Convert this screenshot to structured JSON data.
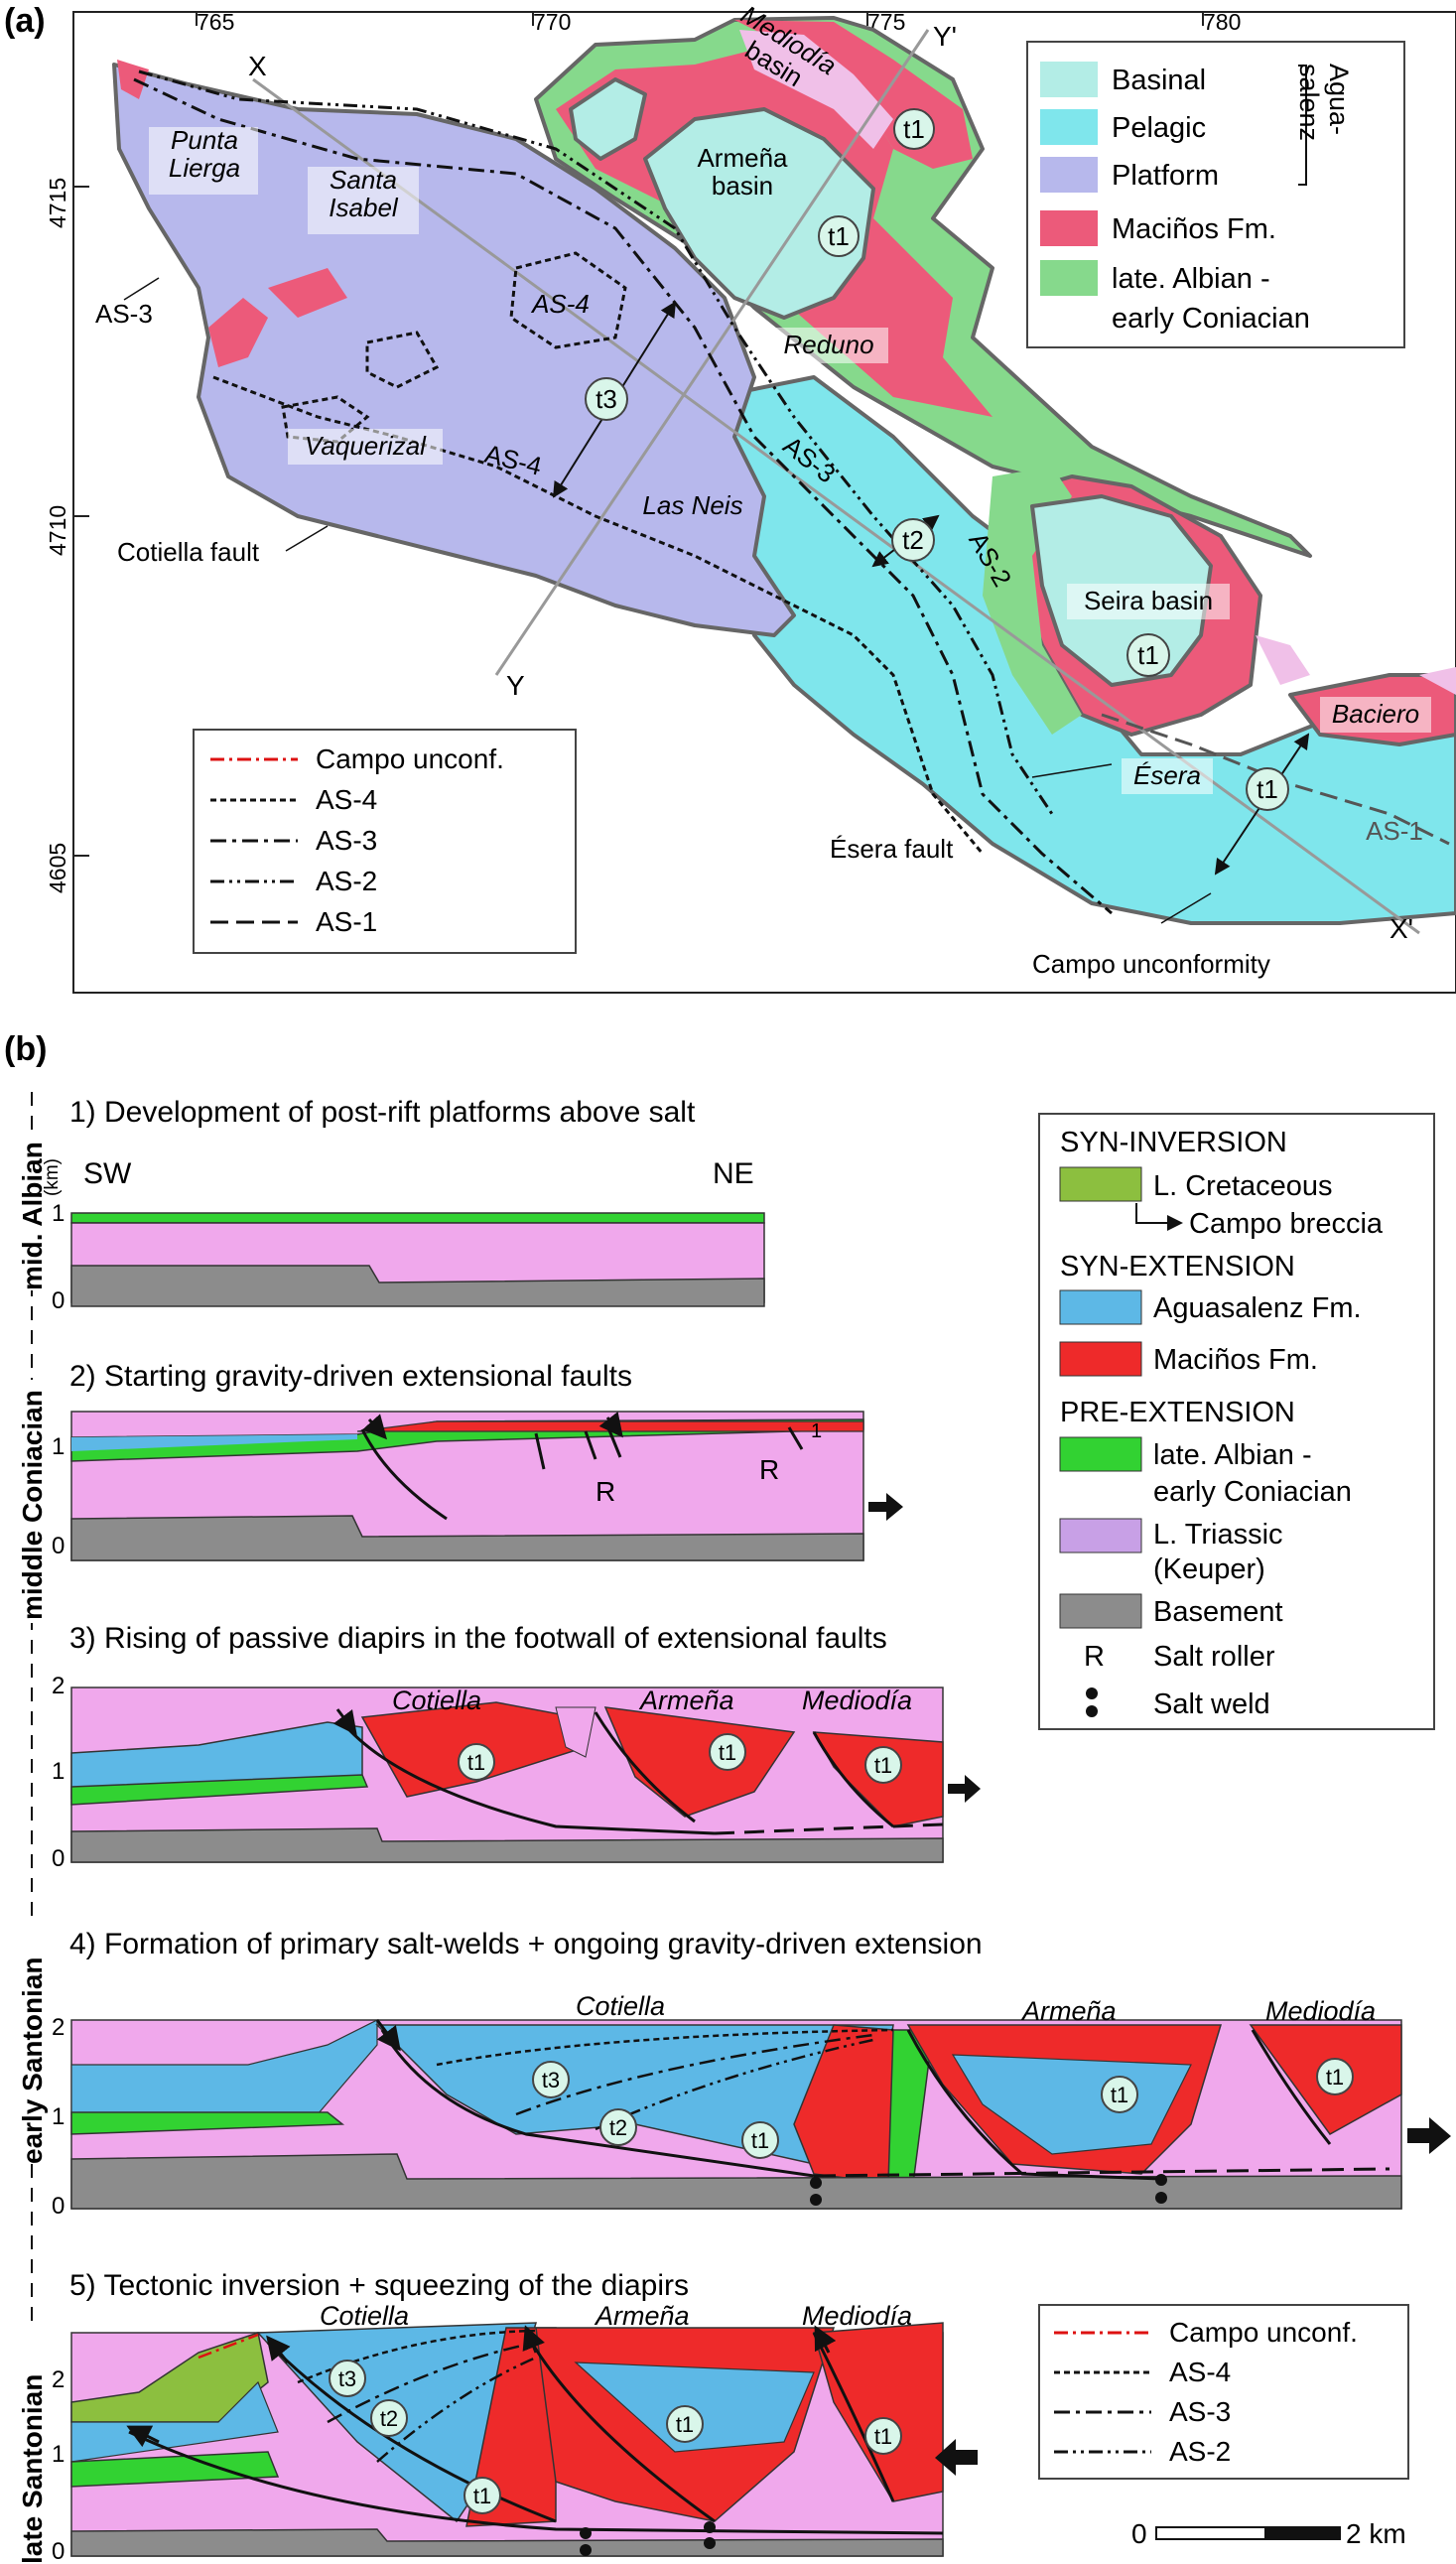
{
  "panel_a": {
    "letter": "(a)",
    "easting_ticks": [
      "765",
      "770",
      "775",
      "780"
    ],
    "northing_ticks": [
      "4715",
      "4710",
      "4605"
    ],
    "legend": {
      "basinal": "Basinal",
      "pelagic": "Pelagic",
      "platform": "Platform",
      "aguasalenz": "Agua-\nsalenz",
      "macinos": "Maciños Fm.",
      "late_albian_1": "late. Albian -",
      "late_albian_2": "early Coniacian"
    },
    "line_legend": {
      "campo": "Campo unconf.",
      "as4": "AS-4",
      "as3": "AS-3",
      "as2": "AS-2",
      "as1": "AS-1"
    },
    "labels": {
      "x": "X",
      "x_prime": "X'",
      "y": "Y",
      "y_prime": "Y'",
      "punta_lierga": "Punta\nLierga",
      "santa_isabel": "Santa\nIsabel",
      "mediodia_basin": "Mediodía\nbasin",
      "armena_basin": "Armeña\nbasin",
      "reduno": "Reduno",
      "las_neis": "Las Neis",
      "vaquerizal": "Vaquerizal",
      "seira_basin": "Seira basin",
      "baciero": "Baciero",
      "esera": "Ésera",
      "as3_a": "AS-3",
      "as4_a": "AS-4",
      "as4_b": "AS-4",
      "as3_b": "AS-3",
      "as2_a": "AS-2",
      "as1_a": "AS-1",
      "cotiella_fault": "Cotiella fault",
      "esera_fault": "Ésera fault",
      "campo_unconformity": "Campo unconformity",
      "t1": "t1",
      "t2": "t2",
      "t3": "t3"
    },
    "colors": {
      "basinal": "#b3ede6",
      "pelagic": "#7fe6ec",
      "platform": "#b7b8ec",
      "macinos": "#ec5a7a",
      "albian": "#86d98c",
      "keuper_light": "#f0c0e8"
    }
  },
  "panel_b": {
    "letter": "(b)",
    "stages": [
      {
        "title": "1) Development of post-rift platforms above salt",
        "age": "mid. Albian"
      },
      {
        "title": "2) Starting gravity-driven extensional faults",
        "age": "middle Coniacian"
      },
      {
        "title": "3) Rising of passive diapirs in the footwall of extensional faults",
        "age": ""
      },
      {
        "title": "4) Formation of primary salt-welds + ongoing gravity-driven extension",
        "age": "early Santonian"
      },
      {
        "title": "5) Tectonic inversion + squeezing of the diapirs",
        "age": "late Santonian"
      }
    ],
    "km_unit": "(km)",
    "sw": "SW",
    "ne": "NE",
    "r": "R",
    "one": "1",
    "cotiella": "Cotiella",
    "armena": "Armeña",
    "mediodia": "Mediodía",
    "legend": {
      "syn_inversion": "SYN-INVERSION",
      "l_cretaceous": "L. Cretaceous",
      "campo_breccia": "Campo breccia",
      "syn_extension": "SYN-EXTENSION",
      "aguasalenz": "Aguasalenz Fm.",
      "macinos": "Maciños Fm.",
      "pre_extension": "PRE-EXTENSION",
      "late_albian_1": "late. Albian -",
      "late_albian_2": "early Coniacian",
      "triassic_1": "L. Triassic",
      "triassic_2": "(Keuper)",
      "basement": "Basement",
      "salt_roller": "Salt roller",
      "salt_weld": "Salt weld"
    },
    "line_legend": {
      "campo": "Campo unconf.",
      "as4": "AS-4",
      "as3": "AS-3",
      "as2": "AS-2"
    },
    "scale": {
      "zero": "0",
      "km": "2 km"
    },
    "colors": {
      "l_cretaceous": "#8cbf3f",
      "aguasalenz": "#5db8e6",
      "macinos": "#ee2a2a",
      "albian": "#32d232",
      "keuper": "#f0a8ec",
      "keuper_legend": "#c8a0e6",
      "basement": "#8c8c8c"
    }
  }
}
